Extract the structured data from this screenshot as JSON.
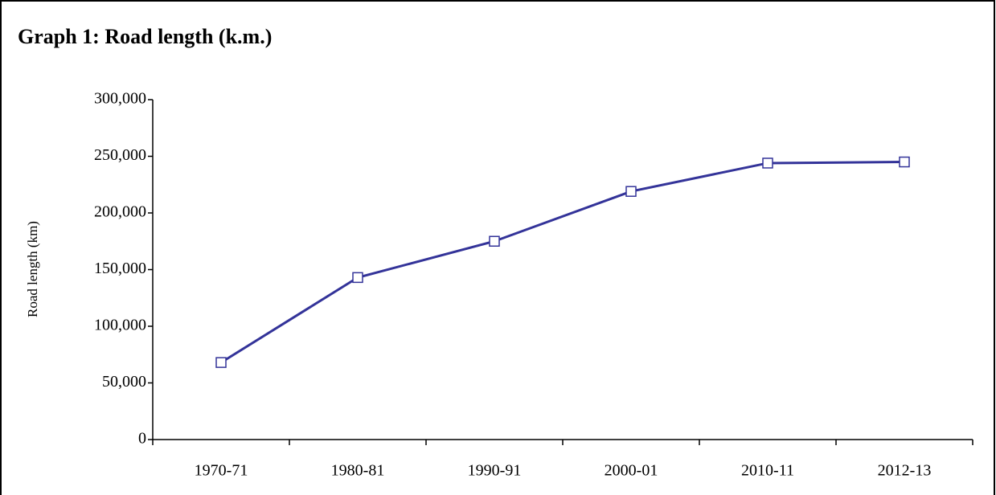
{
  "chart_data": {
    "type": "line",
    "title": "Graph 1: Road length (k.m.)",
    "y_label": "Road length (km)",
    "categories": [
      "1970-71",
      "1980-81",
      "1990-91",
      "2000-01",
      "2010-11",
      "2012-13"
    ],
    "series": [
      {
        "name": "Road length",
        "color": "#333399",
        "values": [
          68000,
          143000,
          175000,
          219000,
          244000,
          245000
        ]
      }
    ],
    "ylim": [
      0,
      300000
    ],
    "yticks": [
      0,
      {
        "value": 50000,
        "label": "50,000"
      },
      {
        "value": 100000,
        "label": "100,000"
      },
      {
        "value": 150000,
        "label": "150,000"
      },
      {
        "value": 200000,
        "label": "200,000"
      },
      {
        "value": 250000,
        "label": "250,000"
      },
      {
        "value": 300000,
        "label": "300,000"
      }
    ],
    "grid": false
  }
}
